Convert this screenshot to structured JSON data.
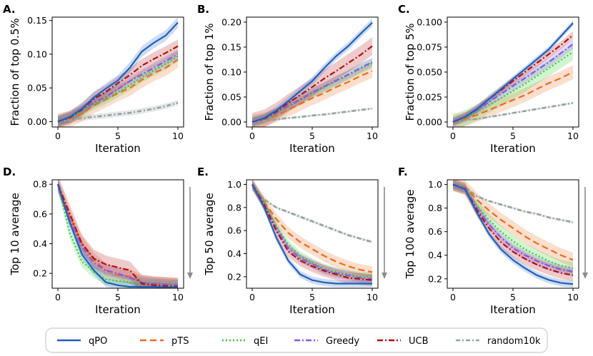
{
  "legend": [
    {
      "key": "qPO",
      "label": "qPO"
    },
    {
      "key": "pTS",
      "label": "pTS"
    },
    {
      "key": "qEI",
      "label": "qEI"
    },
    {
      "key": "Greedy",
      "label": "Greedy"
    },
    {
      "key": "UCB",
      "label": "UCB"
    },
    {
      "key": "random10k",
      "label": "random10k"
    }
  ],
  "styles": {
    "qPO": {
      "color": "#1f5fbf",
      "dash": ""
    },
    "pTS": {
      "color": "#ee6a1c",
      "dash": "9,5"
    },
    "qEI": {
      "color": "#33cc33",
      "dash": "2,3"
    },
    "Greedy": {
      "color": "#8855ee",
      "dash": "8,3,2,3"
    },
    "UCB": {
      "color": "#b01010",
      "dash": "8,3,2,3"
    },
    "random10k": {
      "color": "#93a3a3",
      "dash": "6,3,2,3"
    }
  },
  "chart_data": [
    {
      "panel": "A.",
      "type": "line",
      "xlabel": "Iteration",
      "ylabel": "Fraction of top 0.5%",
      "xlim": [
        0,
        10
      ],
      "ylim": [
        -0.008,
        0.155
      ],
      "xticks": [
        0,
        5,
        10
      ],
      "yticks": [
        0,
        0.05,
        0.1,
        0.15
      ],
      "ytick_labels": [
        "0.00",
        "0.05",
        "0.10",
        "0.15"
      ],
      "x": [
        0,
        1,
        2,
        3,
        4,
        5,
        6,
        7,
        8,
        9,
        10
      ],
      "arrow": false,
      "series": [
        {
          "name": "random10k",
          "values": [
            0.0,
            0.002,
            0.005,
            0.007,
            0.009,
            0.011,
            0.013,
            0.016,
            0.019,
            0.023,
            0.028
          ],
          "band": 0.004
        },
        {
          "name": "pTS",
          "values": [
            0.0,
            0.004,
            0.012,
            0.024,
            0.033,
            0.042,
            0.05,
            0.062,
            0.072,
            0.08,
            0.092
          ],
          "band": 0.012
        },
        {
          "name": "qEI",
          "values": [
            0.0,
            0.005,
            0.015,
            0.026,
            0.034,
            0.044,
            0.054,
            0.066,
            0.076,
            0.086,
            0.097
          ],
          "band": 0.008
        },
        {
          "name": "Greedy",
          "values": [
            0.0,
            0.006,
            0.017,
            0.028,
            0.037,
            0.048,
            0.06,
            0.07,
            0.08,
            0.09,
            0.1
          ],
          "band": 0.007
        },
        {
          "name": "UCB",
          "values": [
            0.0,
            0.006,
            0.018,
            0.034,
            0.044,
            0.057,
            0.069,
            0.083,
            0.093,
            0.102,
            0.112
          ],
          "band": 0.01
        },
        {
          "name": "qPO",
          "values": [
            0.0,
            0.007,
            0.019,
            0.036,
            0.049,
            0.061,
            0.08,
            0.104,
            0.117,
            0.128,
            0.147
          ],
          "band": 0.008
        }
      ]
    },
    {
      "panel": "B.",
      "type": "line",
      "xlabel": "Iteration",
      "ylabel": "Fraction of top 1%",
      "xlim": [
        0,
        10
      ],
      "ylim": [
        -0.01,
        0.21
      ],
      "xticks": [
        0,
        5,
        10
      ],
      "yticks": [
        0,
        0.05,
        0.1,
        0.15,
        0.2
      ],
      "ytick_labels": [
        "0.00",
        "0.05",
        "0.10",
        "0.15",
        "0.20"
      ],
      "x": [
        0,
        1,
        2,
        3,
        4,
        5,
        6,
        7,
        8,
        9,
        10
      ],
      "arrow": false,
      "series": [
        {
          "name": "random10k",
          "values": [
            0.0,
            0.002,
            0.005,
            0.008,
            0.01,
            0.013,
            0.015,
            0.018,
            0.021,
            0.024,
            0.027
          ],
          "band": 0.002
        },
        {
          "name": "pTS",
          "values": [
            0.0,
            0.005,
            0.013,
            0.025,
            0.036,
            0.048,
            0.058,
            0.07,
            0.08,
            0.092,
            0.102
          ],
          "band": 0.014
        },
        {
          "name": "qEI",
          "values": [
            0.0,
            0.006,
            0.017,
            0.031,
            0.044,
            0.057,
            0.069,
            0.082,
            0.094,
            0.106,
            0.118
          ],
          "band": 0.01
        },
        {
          "name": "Greedy",
          "values": [
            0.0,
            0.006,
            0.018,
            0.032,
            0.045,
            0.059,
            0.071,
            0.083,
            0.095,
            0.108,
            0.12
          ],
          "band": 0.009
        },
        {
          "name": "UCB",
          "values": [
            0.0,
            0.007,
            0.021,
            0.038,
            0.054,
            0.07,
            0.087,
            0.102,
            0.118,
            0.134,
            0.152
          ],
          "band": 0.018
        },
        {
          "name": "qPO",
          "values": [
            0.0,
            0.008,
            0.023,
            0.042,
            0.062,
            0.082,
            0.108,
            0.132,
            0.152,
            0.176,
            0.199
          ],
          "band": 0.008
        }
      ]
    },
    {
      "panel": "C.",
      "type": "line",
      "xlabel": "Iteration",
      "ylabel": "Fraction of top 5%",
      "xlim": [
        0,
        10
      ],
      "ylim": [
        -0.005,
        0.105
      ],
      "xticks": [
        0,
        5,
        10
      ],
      "yticks": [
        0,
        0.025,
        0.05,
        0.075,
        0.1
      ],
      "ytick_labels": [
        "0.000",
        "0.025",
        "0.050",
        "0.075",
        "0.100"
      ],
      "x": [
        0,
        1,
        2,
        3,
        4,
        5,
        6,
        7,
        8,
        9,
        10
      ],
      "arrow": false,
      "series": [
        {
          "name": "random10k",
          "values": [
            0.0,
            0.002,
            0.003,
            0.005,
            0.007,
            0.009,
            0.011,
            0.013,
            0.015,
            0.017,
            0.019
          ],
          "band": 0.001
        },
        {
          "name": "pTS",
          "values": [
            0.0,
            0.003,
            0.007,
            0.012,
            0.017,
            0.022,
            0.027,
            0.033,
            0.039,
            0.044,
            0.05
          ],
          "band": 0.007
        },
        {
          "name": "qEI",
          "values": [
            0.0,
            0.004,
            0.01,
            0.017,
            0.024,
            0.031,
            0.038,
            0.046,
            0.054,
            0.062,
            0.07
          ],
          "band": 0.008
        },
        {
          "name": "Greedy",
          "values": [
            0.0,
            0.005,
            0.012,
            0.02,
            0.028,
            0.036,
            0.044,
            0.052,
            0.06,
            0.069,
            0.078
          ],
          "band": 0.005
        },
        {
          "name": "UCB",
          "values": [
            0.0,
            0.005,
            0.013,
            0.023,
            0.032,
            0.041,
            0.05,
            0.059,
            0.068,
            0.077,
            0.087
          ],
          "band": 0.004
        },
        {
          "name": "qPO",
          "values": [
            0.0,
            0.005,
            0.013,
            0.023,
            0.033,
            0.043,
            0.053,
            0.063,
            0.073,
            0.086,
            0.099
          ],
          "band": 0.003
        }
      ]
    },
    {
      "panel": "D.",
      "type": "line",
      "xlabel": "Iteration",
      "ylabel": "Top 10 average",
      "xlim": [
        0,
        10
      ],
      "ylim": [
        0.1,
        0.83
      ],
      "xticks": [
        0,
        5,
        10
      ],
      "yticks": [
        0.2,
        0.4,
        0.6,
        0.8
      ],
      "ytick_labels": [
        "0.2",
        "0.4",
        "0.6",
        "0.8"
      ],
      "x": [
        0,
        1,
        2,
        3,
        4,
        5,
        6,
        7,
        8,
        9,
        10
      ],
      "arrow": true,
      "series": [
        {
          "name": "random10k",
          "values": [
            0.8,
            0.55,
            0.36,
            0.25,
            0.2,
            0.18,
            0.16,
            0.15,
            0.145,
            0.14,
            0.138
          ],
          "band": 0.01
        },
        {
          "name": "pTS",
          "values": [
            0.8,
            0.58,
            0.4,
            0.29,
            0.22,
            0.19,
            0.18,
            0.14,
            0.13,
            0.125,
            0.12
          ],
          "band": 0.05
        },
        {
          "name": "qEI",
          "values": [
            0.8,
            0.47,
            0.28,
            0.21,
            0.16,
            0.15,
            0.14,
            0.13,
            0.125,
            0.12,
            0.115
          ],
          "band": 0.04
        },
        {
          "name": "Greedy",
          "values": [
            0.8,
            0.56,
            0.38,
            0.27,
            0.22,
            0.2,
            0.17,
            0.14,
            0.13,
            0.125,
            0.12
          ],
          "band": 0.04
        },
        {
          "name": "UCB",
          "values": [
            0.8,
            0.6,
            0.4,
            0.3,
            0.26,
            0.24,
            0.22,
            0.13,
            0.12,
            0.115,
            0.11
          ],
          "band": 0.06
        },
        {
          "name": "qPO",
          "values": [
            0.8,
            0.54,
            0.33,
            0.22,
            0.14,
            0.12,
            0.11,
            0.11,
            0.11,
            0.105,
            0.105
          ],
          "band": 0.03
        }
      ]
    },
    {
      "panel": "E.",
      "type": "line",
      "xlabel": "Iteration",
      "ylabel": "Top 50 average",
      "xlim": [
        0,
        10
      ],
      "ylim": [
        0.1,
        1.04
      ],
      "xticks": [
        0,
        5,
        10
      ],
      "yticks": [
        0.2,
        0.4,
        0.6,
        0.8,
        1.0
      ],
      "ytick_labels": [
        "0.2",
        "0.4",
        "0.6",
        "0.8",
        "1.0"
      ],
      "x": [
        0,
        1,
        2,
        3,
        4,
        5,
        6,
        7,
        8,
        9,
        10
      ],
      "arrow": true,
      "series": [
        {
          "name": "random10k",
          "values": [
            1.0,
            0.87,
            0.8,
            0.76,
            0.72,
            0.68,
            0.64,
            0.6,
            0.56,
            0.53,
            0.5
          ],
          "band": 0.012
        },
        {
          "name": "pTS",
          "values": [
            1.0,
            0.85,
            0.7,
            0.58,
            0.5,
            0.44,
            0.38,
            0.33,
            0.29,
            0.26,
            0.24
          ],
          "band": 0.05
        },
        {
          "name": "qEI",
          "values": [
            1.0,
            0.84,
            0.64,
            0.48,
            0.38,
            0.32,
            0.27,
            0.24,
            0.22,
            0.2,
            0.2
          ],
          "band": 0.04
        },
        {
          "name": "Greedy",
          "values": [
            1.0,
            0.83,
            0.62,
            0.45,
            0.36,
            0.31,
            0.26,
            0.23,
            0.21,
            0.19,
            0.18
          ],
          "band": 0.04
        },
        {
          "name": "UCB",
          "values": [
            1.0,
            0.82,
            0.6,
            0.42,
            0.34,
            0.29,
            0.25,
            0.22,
            0.19,
            0.18,
            0.17
          ],
          "band": 0.05
        },
        {
          "name": "qPO",
          "values": [
            1.0,
            0.8,
            0.54,
            0.34,
            0.22,
            0.17,
            0.15,
            0.14,
            0.14,
            0.14,
            0.14
          ],
          "band": 0.03
        }
      ]
    },
    {
      "panel": "F.",
      "type": "line",
      "xlabel": "Iteration",
      "ylabel": "Top 100 average",
      "xlim": [
        0,
        10
      ],
      "ylim": [
        0.12,
        1.04
      ],
      "xticks": [
        0,
        5,
        10
      ],
      "yticks": [
        0.2,
        0.4,
        0.6,
        0.8,
        1.0
      ],
      "ytick_labels": [
        "0.2",
        "0.4",
        "0.6",
        "0.8",
        "1.0"
      ],
      "x": [
        0,
        1,
        2,
        3,
        4,
        5,
        6,
        7,
        8,
        9,
        10
      ],
      "arrow": true,
      "series": [
        {
          "name": "random10k",
          "values": [
            1.0,
            0.98,
            0.9,
            0.86,
            0.83,
            0.8,
            0.77,
            0.75,
            0.72,
            0.7,
            0.68
          ],
          "band": 0.01
        },
        {
          "name": "pTS",
          "values": [
            1.0,
            0.98,
            0.87,
            0.78,
            0.7,
            0.63,
            0.56,
            0.5,
            0.45,
            0.4,
            0.36
          ],
          "band": 0.06
        },
        {
          "name": "qEI",
          "values": [
            1.0,
            0.97,
            0.82,
            0.7,
            0.6,
            0.52,
            0.45,
            0.4,
            0.35,
            0.31,
            0.29
          ],
          "band": 0.05
        },
        {
          "name": "Greedy",
          "values": [
            1.0,
            0.97,
            0.8,
            0.66,
            0.55,
            0.46,
            0.4,
            0.35,
            0.31,
            0.28,
            0.26
          ],
          "band": 0.04
        },
        {
          "name": "UCB",
          "values": [
            1.0,
            0.96,
            0.78,
            0.63,
            0.51,
            0.43,
            0.37,
            0.32,
            0.28,
            0.25,
            0.23
          ],
          "band": 0.05
        },
        {
          "name": "qPO",
          "values": [
            1.0,
            0.96,
            0.76,
            0.58,
            0.45,
            0.36,
            0.29,
            0.23,
            0.19,
            0.165,
            0.155
          ],
          "band": 0.03
        }
      ]
    }
  ]
}
